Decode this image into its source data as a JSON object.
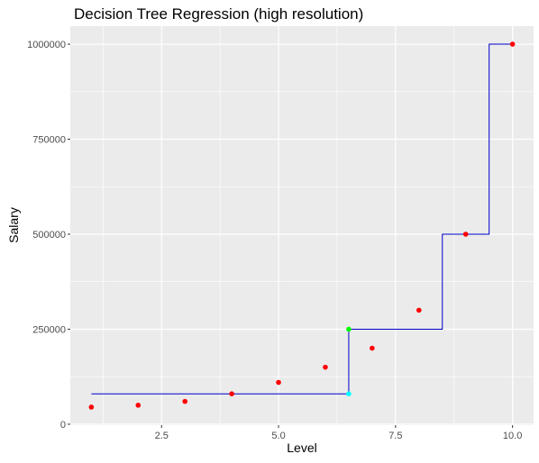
{
  "chart_data": {
    "type": "scatter",
    "title": "Decision Tree Regression (high resolution)",
    "xlabel": "Level",
    "ylabel": "Salary",
    "xlim": [
      0.55,
      10.45
    ],
    "ylim": [
      -2500,
      1047500
    ],
    "x_ticks": [
      {
        "value": 2.5,
        "label": "2.5"
      },
      {
        "value": 5.0,
        "label": "5.0"
      },
      {
        "value": 7.5,
        "label": "7.5"
      },
      {
        "value": 10.0,
        "label": "10.0"
      }
    ],
    "y_ticks": [
      {
        "value": 0,
        "label": "0"
      },
      {
        "value": 250000,
        "label": "250000"
      },
      {
        "value": 500000,
        "label": "500000"
      },
      {
        "value": 750000,
        "label": "750000"
      },
      {
        "value": 1000000,
        "label": "1000000"
      }
    ],
    "grid": true,
    "points": {
      "color": "#ff0000",
      "x": [
        1,
        2,
        3,
        4,
        5,
        6,
        7,
        8,
        9,
        10
      ],
      "y": [
        45000,
        50000,
        60000,
        80000,
        110000,
        150000,
        200000,
        300000,
        500000,
        1000000
      ]
    },
    "highlight_points": [
      {
        "x": 6.5,
        "y": 250000,
        "color": "#00ff00"
      },
      {
        "x": 6.5,
        "y": 80000,
        "color": "#00ffff"
      }
    ],
    "step_line": {
      "color": "#0000cc",
      "x": [
        1,
        6.5,
        6.5,
        8.5,
        8.5,
        8.5,
        8.5,
        9.5,
        9.5,
        10
      ],
      "y": [
        80000,
        80000,
        250000,
        250000,
        300000,
        375000,
        500000,
        500000,
        1000000,
        1000000
      ]
    }
  }
}
